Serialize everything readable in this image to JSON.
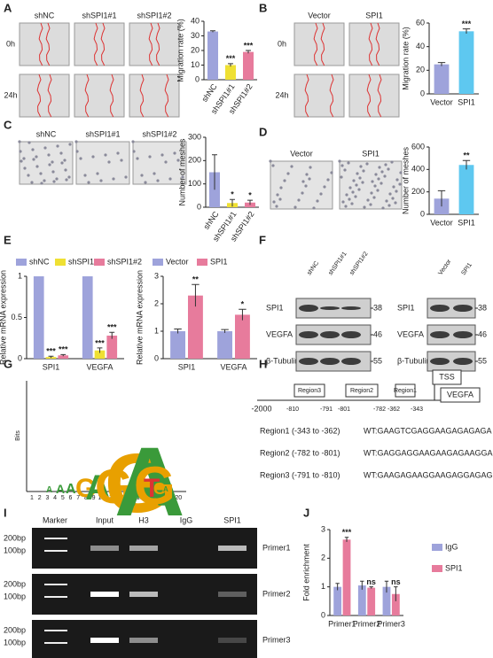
{
  "panel_labels": [
    "A",
    "B",
    "C",
    "D",
    "E",
    "F",
    "G",
    "H",
    "I",
    "J"
  ],
  "panelA": {
    "columns": [
      "shNC",
      "shSPI1#1",
      "shSPI1#2"
    ],
    "rows": [
      "0h",
      "24h"
    ]
  },
  "panelB": {
    "columns": [
      "Vector",
      "SPI1"
    ],
    "rows": [
      "0h",
      "24h"
    ]
  },
  "panelC": {
    "columns": [
      "shNC",
      "shSPI1#1",
      "shSPI1#2"
    ]
  },
  "panelD": {
    "columns": [
      "Vector",
      "SPI1"
    ]
  },
  "panelF": {
    "left": {
      "lanes": [
        "shNC",
        "shSPI1#1",
        "shSPI1#2"
      ],
      "proteins": [
        "SPI1",
        "VEGFA",
        "β-Tubulin"
      ],
      "sizes": [
        38,
        46,
        55
      ]
    },
    "right": {
      "lanes": [
        "Vector",
        "SPI1"
      ],
      "proteins": [
        "SPI1",
        "VEGFA",
        "β-Tubulin"
      ],
      "sizes": [
        38,
        46,
        55
      ]
    }
  },
  "panelG": {
    "axis_label": "Bits",
    "motif": "AAAGAGGAAGTGA",
    "positions": [
      1,
      2,
      3,
      4,
      5,
      6,
      7,
      8,
      9,
      10,
      11,
      12,
      13,
      14,
      15,
      16,
      17,
      18,
      19,
      20
    ]
  },
  "panelH": {
    "start": "-2000",
    "regions": [
      {
        "name": "Region3",
        "left": "-810",
        "right": "-791"
      },
      {
        "name": "Region2",
        "left": "-801",
        "right": "-782"
      },
      {
        "name": "Region1",
        "left": "-362",
        "right": "-343"
      }
    ],
    "tss": "TSS",
    "gene": "VEGFA",
    "details": [
      {
        "region": "Region1 (-343 to -362)",
        "seq": "WT:GAAGTCGAGGAAGAGAGAGA"
      },
      {
        "region": "Region2 (-782 to -801)",
        "seq": "WT:GAGGAGGAAGAAGAGAAGGA"
      },
      {
        "region": "Region3 (-791 to -810)",
        "seq": "WT:GAAGAGAAGGAAGAGGAGAG"
      }
    ]
  },
  "panelI": {
    "lanes": [
      "Marker",
      "Input",
      "H3",
      "IgG",
      "SPI1"
    ],
    "gels": [
      {
        "ladder": [
          "200bp",
          "100bp"
        ],
        "primer": "Primer1"
      },
      {
        "ladder": [
          "200bp",
          "100bp"
        ],
        "primer": "Primer2"
      },
      {
        "ladder": [
          "200bp",
          "100bp"
        ],
        "primer": "Primer3"
      }
    ]
  },
  "chart_data": [
    {
      "type": "bar",
      "y_label": "Migration rate (%)",
      "categories": [
        "shNC",
        "shSPI1#1",
        "shSPI1#2"
      ],
      "values": [
        33,
        10,
        19
      ],
      "errors": [
        0.5,
        1,
        1
      ],
      "colors": [
        "#9ea3db",
        "#efe033",
        "#e77b9c"
      ],
      "significance": [
        null,
        "***",
        "***"
      ],
      "ylim": [
        0,
        40
      ],
      "yticks": [
        0,
        10,
        20,
        30,
        40
      ],
      "rotate_labels": true
    },
    {
      "type": "bar",
      "y_label": "Migration rate (%)",
      "categories": [
        "Vector",
        "SPI1"
      ],
      "values": [
        25,
        53
      ],
      "errors": [
        1.5,
        2
      ],
      "colors": [
        "#9ea3db",
        "#5ec8f0"
      ],
      "significance": [
        null,
        "***"
      ],
      "ylim": [
        0,
        60
      ],
      "yticks": [
        0,
        20,
        40,
        60
      ]
    },
    {
      "type": "bar",
      "y_label": "Number of meshes",
      "categories": [
        "shNC",
        "shSPI1#1",
        "shSPI1#2"
      ],
      "values": [
        150,
        18,
        20
      ],
      "errors": [
        75,
        15,
        10
      ],
      "colors": [
        "#9ea3db",
        "#efe033",
        "#e77b9c"
      ],
      "significance": [
        null,
        "*",
        "*"
      ],
      "ylim": [
        0,
        300
      ],
      "yticks": [
        0,
        100,
        200,
        300
      ],
      "rotate_labels": true
    },
    {
      "type": "bar",
      "y_label": "Number of meshes",
      "categories": [
        "Vector",
        "SPI1"
      ],
      "values": [
        140,
        440
      ],
      "errors": [
        70,
        40
      ],
      "colors": [
        "#9ea3db",
        "#5ec8f0"
      ],
      "significance": [
        null,
        "**"
      ],
      "ylim": [
        0,
        600
      ],
      "yticks": [
        0,
        200,
        400,
        600
      ]
    },
    {
      "type": "grouped_bar",
      "y_label": "Relative mRNA expression",
      "categories": [
        "SPI1",
        "VEGFA"
      ],
      "legend": "top",
      "series": [
        {
          "name": "shNC",
          "color": "#9ea3db",
          "values": [
            1,
            1
          ],
          "errors": [
            0,
            0
          ],
          "significance": [
            null,
            null
          ]
        },
        {
          "name": "shSPI1#1",
          "color": "#efe033",
          "values": [
            0.02,
            0.1
          ],
          "errors": [
            0.01,
            0.03
          ],
          "significance": [
            "***",
            "***"
          ]
        },
        {
          "name": "shSPI1#2",
          "color": "#e77b9c",
          "values": [
            0.04,
            0.28
          ],
          "errors": [
            0.01,
            0.04
          ],
          "significance": [
            "***",
            "***"
          ]
        }
      ],
      "ylim": [
        0,
        1
      ],
      "yticks": [
        0,
        0.5,
        1
      ]
    },
    {
      "type": "grouped_bar",
      "y_label": "Relative mRNA expression",
      "categories": [
        "SPI1",
        "VEGFA"
      ],
      "legend": "top",
      "series": [
        {
          "name": "Vector",
          "color": "#9ea3db",
          "values": [
            1,
            1
          ],
          "errors": [
            0.08,
            0.06
          ],
          "significance": [
            null,
            null
          ]
        },
        {
          "name": "SPI1",
          "color": "#e77b9c",
          "values": [
            2.3,
            1.6
          ],
          "errors": [
            0.4,
            0.2
          ],
          "significance": [
            "**",
            "*"
          ]
        }
      ],
      "ylim": [
        0,
        3
      ],
      "yticks": [
        0,
        1,
        2,
        3
      ]
    },
    {
      "type": "grouped_bar",
      "y_label": "Fold enrichment",
      "categories": [
        "Primer1",
        "Primer2",
        "Primer3"
      ],
      "legend": "right",
      "series": [
        {
          "name": "IgG",
          "color": "#9ea3db",
          "values": [
            1,
            1.05,
            1
          ],
          "errors": [
            0.12,
            0.15,
            0.2
          ],
          "significance": [
            null,
            null,
            null
          ]
        },
        {
          "name": "SPI1",
          "color": "#e77b9c",
          "values": [
            2.65,
            0.97,
            0.75
          ],
          "errors": [
            0.08,
            0.03,
            0.25
          ],
          "significance": [
            "***",
            "ns",
            "ns"
          ]
        }
      ],
      "ylim": [
        0,
        3
      ],
      "yticks": [
        0,
        1,
        2,
        3
      ]
    }
  ]
}
